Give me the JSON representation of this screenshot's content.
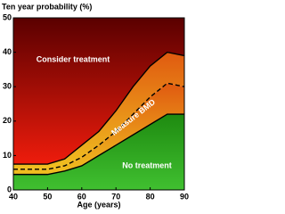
{
  "chart_data": {
    "type": "area",
    "title": "Ten year probability (%)",
    "x_label": "Age (years)",
    "x": [
      40,
      45,
      50,
      55,
      60,
      65,
      70,
      75,
      80,
      85,
      90
    ],
    "series": [
      {
        "values": [
          4.5,
          4.5,
          4.5,
          5.5,
          7,
          10,
          13,
          16,
          19,
          22,
          22
        ],
        "color": "#2e9e1e",
        "style": "solid"
      },
      {
        "values": [
          6,
          6,
          6,
          7,
          9.5,
          13,
          17,
          22,
          27,
          31,
          30
        ],
        "color": "#000000",
        "style": "dashed"
      },
      {
        "values": [
          7.5,
          7.5,
          7.5,
          9,
          13,
          17,
          23,
          30,
          36,
          40,
          39
        ],
        "color": "#e8a020",
        "style": "solid"
      }
    ],
    "top_color": "#cc1010",
    "annotations": [
      "No treatment",
      "Measure BMD",
      "Consider treatment"
    ],
    "xlim": [
      40,
      90
    ],
    "xticks": [
      40,
      50,
      60,
      70,
      80,
      90
    ],
    "ylim": [
      0,
      50
    ],
    "yticks": [
      0,
      10,
      20,
      30,
      40,
      50
    ]
  }
}
